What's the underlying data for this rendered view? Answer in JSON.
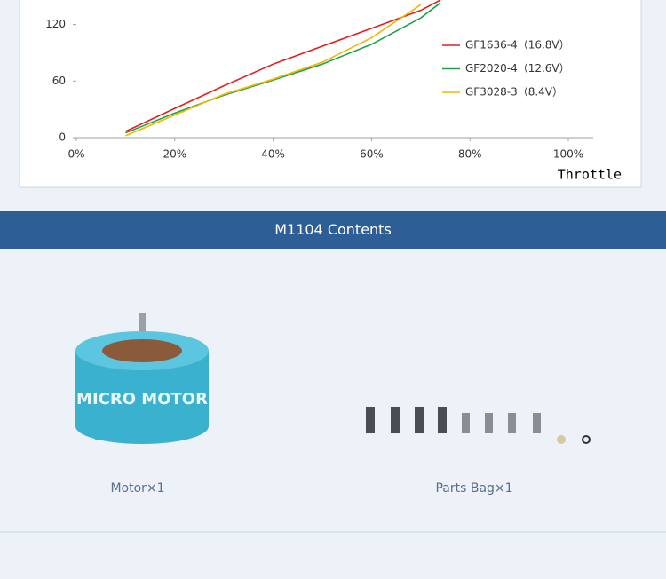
{
  "chart_data": {
    "type": "line",
    "x_label": "Throttle",
    "x": [
      10,
      20,
      30,
      40,
      50,
      60,
      70,
      74
    ],
    "xlim": [
      0,
      100
    ],
    "xticks": [
      {
        "value": 0,
        "label": "0%"
      },
      {
        "value": 20,
        "label": "20%"
      },
      {
        "value": 40,
        "label": "40%"
      },
      {
        "value": 60,
        "label": "60%"
      },
      {
        "value": 80,
        "label": "80%"
      },
      {
        "value": 100,
        "label": "100%"
      }
    ],
    "ylim": [
      0,
      146
    ],
    "yticks": [
      0,
      60,
      120
    ],
    "series": [
      {
        "name": "GF1636-4（16.8V）",
        "color": "#e02020",
        "values": [
          6.6,
          31,
          55,
          78,
          97,
          116,
          135,
          146
        ]
      },
      {
        "name": "GF2020-4（12.6V）",
        "color": "#1fa24a",
        "values": [
          5,
          26,
          45,
          61,
          78,
          99,
          127,
          143
        ]
      },
      {
        "name": "GF3028-3（8.4V）",
        "color": "#f0b800",
        "values": [
          2,
          24,
          46,
          62,
          80,
          106,
          141,
          null
        ]
      }
    ]
  },
  "section": {
    "title": "M1104 Contents",
    "items": [
      {
        "caption": "Motor×1"
      },
      {
        "caption": "Parts Bag×1"
      }
    ]
  }
}
